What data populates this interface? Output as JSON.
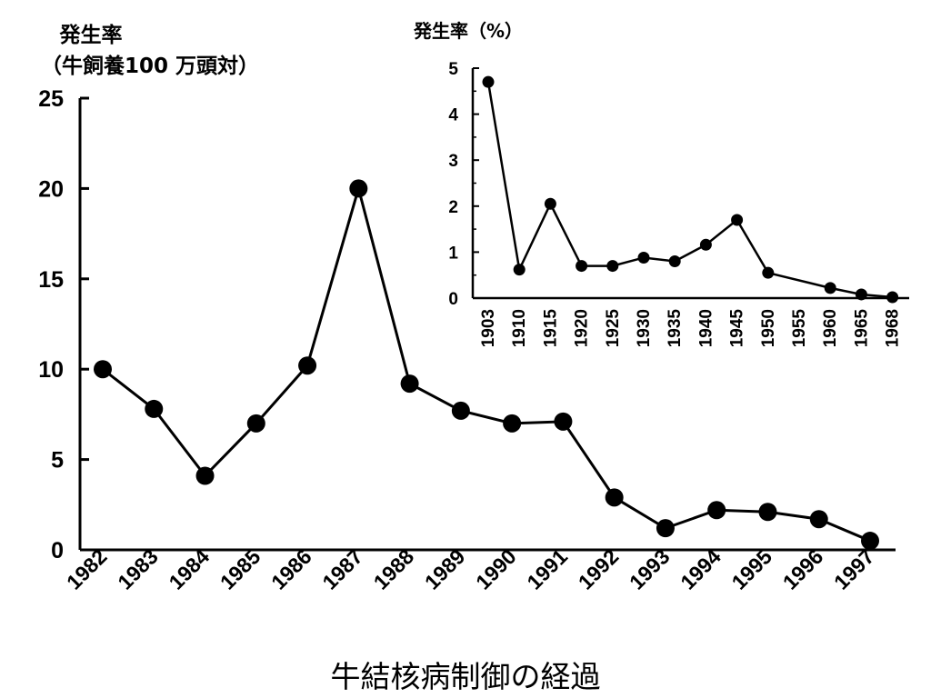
{
  "caption": "牛結核病制御の経過",
  "chart_data": [
    {
      "type": "line",
      "title": "",
      "ylabel_lines": [
        "発生率",
        "（牛飼養100 万頭対）"
      ],
      "xlabel": "",
      "x": [
        "1982",
        "1983",
        "1984",
        "1985",
        "1986",
        "1987",
        "1988",
        "1989",
        "1990",
        "1991",
        "1992",
        "1993",
        "1994",
        "1995",
        "1996",
        "1997"
      ],
      "values": [
        10,
        7.8,
        4.1,
        7.0,
        10.2,
        20.0,
        9.2,
        7.7,
        7.0,
        7.1,
        2.9,
        1.2,
        2.2,
        2.1,
        1.7,
        0.5
      ],
      "ylim": [
        0,
        25
      ],
      "yticks": [
        0,
        5,
        10,
        15,
        20,
        25
      ],
      "grid": false,
      "color": "#000000"
    },
    {
      "type": "line",
      "title": "",
      "ylabel": "発生率（%）",
      "xlabel": "",
      "x": [
        1903,
        1910,
        1915,
        1920,
        1925,
        1930,
        1935,
        1940,
        1945,
        1950,
        1955,
        1960,
        1965,
        1968
      ],
      "x_tick_labels": [
        "1903",
        "1910",
        "1915",
        "1920",
        "1925",
        "1930",
        "1935",
        "1940",
        "1945",
        "1950",
        "1955",
        "1960",
        "1965",
        "1968"
      ],
      "points": [
        {
          "x": 1903,
          "y": 4.7
        },
        {
          "x": 1910,
          "y": 0.62
        },
        {
          "x": 1915,
          "y": 2.05
        },
        {
          "x": 1920,
          "y": 0.7
        },
        {
          "x": 1925,
          "y": 0.7
        },
        {
          "x": 1930,
          "y": 0.88
        },
        {
          "x": 1935,
          "y": 0.8
        },
        {
          "x": 1940,
          "y": 1.16
        },
        {
          "x": 1945,
          "y": 1.7
        },
        {
          "x": 1950,
          "y": 0.55
        },
        {
          "x": 1960,
          "y": 0.22
        },
        {
          "x": 1965,
          "y": 0.08
        },
        {
          "x": 1968,
          "y": 0.02
        }
      ],
      "ylim": [
        0,
        5
      ],
      "yticks": [
        0,
        1,
        2,
        3,
        4,
        5
      ],
      "grid": false,
      "color": "#000000"
    }
  ]
}
